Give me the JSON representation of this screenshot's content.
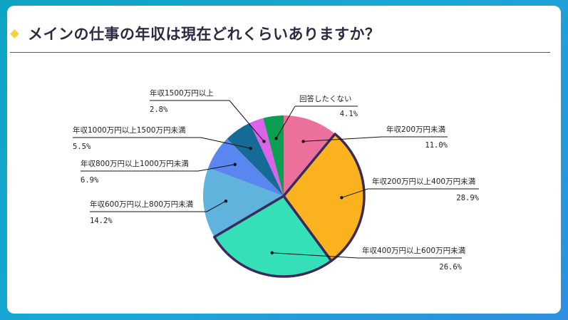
{
  "title": "メインの仕事の年収は現在どれくらいありますか？",
  "colors": {
    "accent_diamond": "#f5d33a",
    "highlight_border": "#3b2a5e"
  },
  "chart_data": {
    "type": "pie",
    "title": "メインの仕事の年収は現在どれくらいありますか？",
    "start_angle_deg": 0,
    "direction": "clockwise",
    "slices": [
      {
        "label": "年収200万円未満",
        "value": 11.0,
        "pct_text": "11.0%",
        "color": "#ec709c",
        "highlight": false
      },
      {
        "label": "年収200万円以上400万円未満",
        "value": 28.9,
        "pct_text": "28.9%",
        "color": "#fbb21f",
        "highlight": true
      },
      {
        "label": "年収400万円以上600万円未満",
        "value": 26.6,
        "pct_text": "26.6%",
        "color": "#35e0b8",
        "highlight": true
      },
      {
        "label": "年収600万円以上800万円未満",
        "value": 14.2,
        "pct_text": "14.2%",
        "color": "#5fb3dc",
        "highlight": false
      },
      {
        "label": "年収800万円以上1000万円未満",
        "value": 6.9,
        "pct_text": "6.9%",
        "color": "#5a86f0",
        "highlight": false
      },
      {
        "label": "年収1000万円以上1500万円未満",
        "value": 5.5,
        "pct_text": "5.5%",
        "color": "#156a96",
        "highlight": false
      },
      {
        "label": "年収1500万円以上",
        "value": 2.8,
        "pct_text": "2.8%",
        "color": "#dd62ea",
        "highlight": false
      },
      {
        "label": "回答したくない",
        "value": 4.1,
        "pct_text": "4.1%",
        "color": "#0c9f52",
        "highlight": false
      }
    ]
  }
}
